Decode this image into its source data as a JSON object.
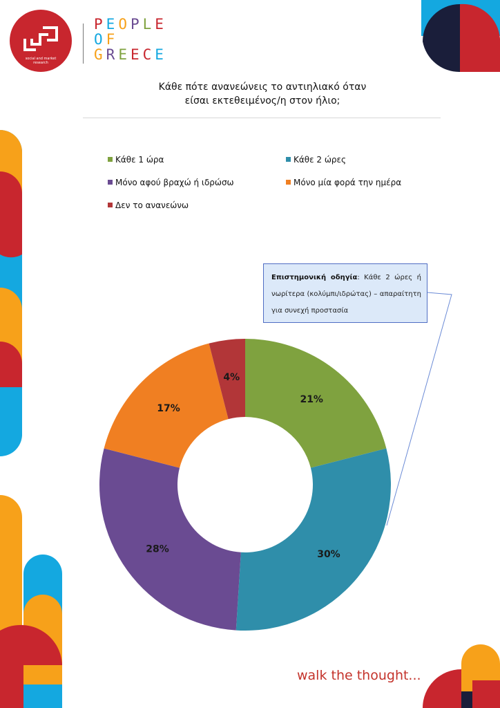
{
  "logo": {
    "subtitle_line1": "social and market",
    "subtitle_line2": "research",
    "brand_lines": [
      "PEOPLE",
      "OF",
      "GREECE"
    ]
  },
  "tagline": "walk the thought...",
  "note": {
    "label": "Επιστημονική οδηγία",
    "text": ": Κάθε 2 ώρες ή νωρίτερα (κολύμπι/ιδρώτας) – απαραίτητη για συνεχή προστασία"
  },
  "colors": {
    "red": "#c8262e",
    "blue": "#14a8e0",
    "orange": "#f7a11a",
    "navy": "#1a1e3a"
  },
  "chart_data": {
    "type": "pie",
    "donut": true,
    "title": "Κάθε πότε ανανεώνεις το αντιηλιακό όταν είσαι εκτεθειμένος/η στον ήλιο;",
    "title_lines": [
      "Κάθε πότε ανανεώνεις το αντιηλιακό όταν",
      "είσαι εκτεθειμένος/η στον ήλιο;"
    ],
    "legend_position": "top",
    "categories": [
      "Κάθε 1 ώρα",
      "Κάθε 2 ώρες",
      "Μόνο αφού βραχώ ή ιδρώσω",
      "Μόνο μία φορά την ημέρα",
      "Δεν το ανανεώνω"
    ],
    "values": [
      21,
      30,
      28,
      17,
      4
    ],
    "labels": [
      "21%",
      "30%",
      "28%",
      "17%",
      "4%"
    ],
    "colors": [
      "#7fa23f",
      "#2f8eaa",
      "#6a4b92",
      "#f07f22",
      "#b23638"
    ]
  }
}
